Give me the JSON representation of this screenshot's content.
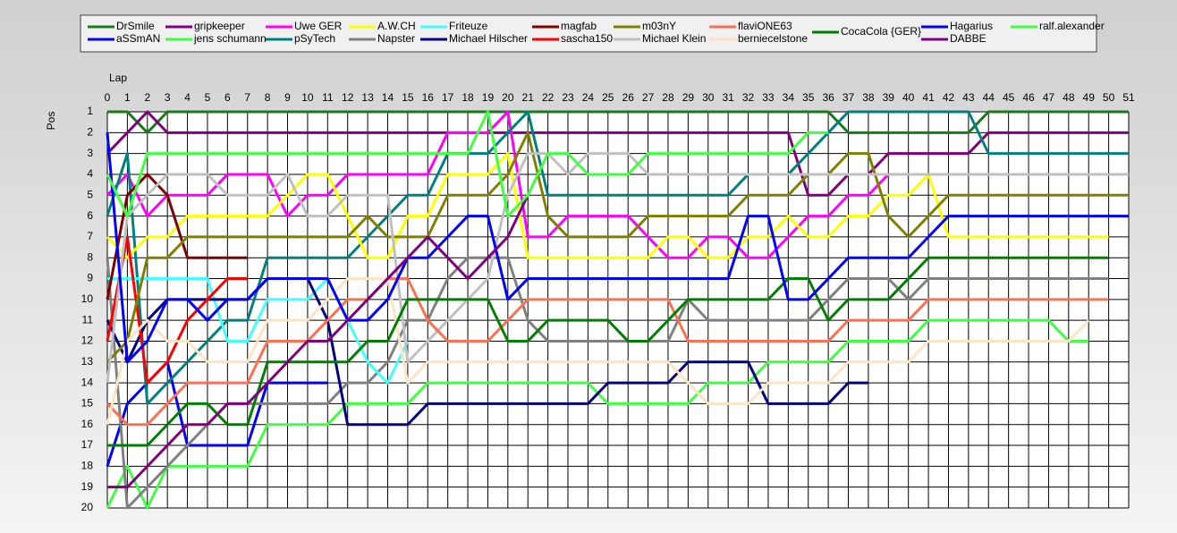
{
  "chart_data": {
    "type": "line",
    "x_label": "Lap",
    "y_label": "Pos",
    "grid": true,
    "x": [
      0,
      1,
      2,
      3,
      4,
      5,
      6,
      7,
      8,
      9,
      10,
      11,
      12,
      13,
      14,
      15,
      16,
      17,
      18,
      19,
      20,
      21,
      22,
      23,
      24,
      25,
      26,
      27,
      28,
      29,
      30,
      31,
      32,
      33,
      34,
      35,
      36,
      37,
      38,
      39,
      40,
      41,
      42,
      43,
      44,
      45,
      46,
      47,
      48,
      49,
      50,
      51
    ],
    "xlim": [
      0,
      51
    ],
    "xticks": [
      0,
      1,
      2,
      3,
      4,
      5,
      6,
      7,
      8,
      9,
      10,
      11,
      12,
      13,
      14,
      15,
      16,
      17,
      18,
      19,
      20,
      21,
      22,
      23,
      24,
      25,
      26,
      27,
      28,
      29,
      30,
      31,
      32,
      33,
      34,
      35,
      36,
      37,
      38,
      39,
      40,
      41,
      42,
      43,
      44,
      45,
      46,
      47,
      48,
      49,
      50,
      51
    ],
    "ylim": [
      20,
      1
    ],
    "yticks": [
      1,
      2,
      3,
      4,
      5,
      6,
      7,
      8,
      9,
      10,
      11,
      12,
      13,
      14,
      15,
      16,
      17,
      18,
      19,
      20
    ],
    "series": [
      {
        "name": "DrSmile",
        "color": "#1a7a1a",
        "values": [
          1,
          1,
          2,
          1,
          1,
          1,
          1,
          1,
          1,
          1,
          1,
          1,
          1,
          1,
          1,
          1,
          1,
          1,
          1,
          1,
          1,
          1,
          1,
          1,
          1,
          1,
          1,
          1,
          1,
          1,
          1,
          1,
          1,
          1,
          1,
          1,
          1,
          2,
          2,
          2,
          2,
          2,
          2,
          2,
          1,
          1,
          1,
          1,
          1,
          1,
          1,
          1
        ]
      },
      {
        "name": "aSSmAN",
        "color": "#0000ff",
        "values": [
          18,
          15,
          14,
          13,
          17,
          17,
          17,
          17,
          14,
          14,
          14,
          14,
          null,
          null,
          null,
          null,
          null,
          null,
          null,
          null,
          null,
          null,
          null,
          null,
          null,
          null,
          null,
          null,
          null,
          null,
          null,
          null,
          null,
          null,
          null,
          null,
          null,
          null,
          null,
          null,
          null,
          null,
          null,
          null,
          null,
          null,
          null,
          null,
          null,
          null,
          null,
          null
        ]
      },
      {
        "name": "gripkeeper",
        "color": "#800080",
        "values": [
          3,
          2,
          1,
          2,
          2,
          2,
          2,
          2,
          2,
          2,
          2,
          2,
          2,
          2,
          2,
          2,
          2,
          2,
          2,
          2,
          2,
          2,
          2,
          2,
          2,
          2,
          2,
          2,
          2,
          2,
          2,
          2,
          2,
          2,
          2,
          5,
          5,
          4,
          4,
          3,
          3,
          3,
          3,
          3,
          2,
          2,
          2,
          2,
          2,
          2,
          2,
          2
        ]
      },
      {
        "name": "jens  schumann",
        "color": "#40ff40",
        "values": [
          20,
          18,
          20,
          18,
          18,
          18,
          18,
          18,
          16,
          16,
          16,
          16,
          15,
          15,
          15,
          15,
          14,
          14,
          14,
          14,
          14,
          14,
          14,
          14,
          14,
          15,
          15,
          15,
          15,
          15,
          14,
          14,
          14,
          13,
          13,
          13,
          13,
          12,
          12,
          12,
          12,
          11,
          11,
          11,
          11,
          11,
          11,
          11,
          12,
          12,
          null,
          null
        ]
      },
      {
        "name": "Uwe GER",
        "color": "#ff00ff",
        "values": [
          5,
          4,
          6,
          5,
          5,
          5,
          4,
          4,
          4,
          6,
          5,
          5,
          4,
          4,
          4,
          4,
          4,
          2,
          2,
          2,
          1,
          7,
          7,
          6,
          6,
          6,
          6,
          7,
          8,
          8,
          7,
          7,
          8,
          8,
          7,
          6,
          6,
          5,
          5,
          4,
          4,
          null,
          null,
          null,
          null,
          null,
          null,
          null,
          null,
          null,
          null,
          null
        ]
      },
      {
        "name": "pSyTech",
        "color": "#008080",
        "values": [
          6,
          3,
          15,
          14,
          13,
          12,
          11,
          11,
          8,
          8,
          8,
          8,
          8,
          7,
          6,
          5,
          5,
          3,
          3,
          3,
          2,
          1,
          5,
          5,
          5,
          5,
          5,
          5,
          5,
          5,
          5,
          5,
          4,
          4,
          4,
          3,
          2,
          1,
          1,
          1,
          1,
          1,
          1,
          1,
          3,
          3,
          3,
          3,
          3,
          3,
          3,
          3
        ]
      },
      {
        "name": "A.W.CH",
        "color": "#ffff00",
        "values": [
          7,
          8,
          7,
          7,
          6,
          6,
          6,
          6,
          6,
          5,
          4,
          4,
          6,
          8,
          8,
          6,
          6,
          4,
          4,
          4,
          3,
          8,
          8,
          8,
          8,
          8,
          8,
          8,
          7,
          7,
          8,
          8,
          7,
          7,
          6,
          7,
          7,
          6,
          6,
          5,
          5,
          4,
          7,
          7,
          7,
          7,
          7,
          7,
          7,
          7,
          7,
          null
        ]
      },
      {
        "name": "Napster",
        "color": "#808080",
        "values": [
          8,
          20,
          19,
          18,
          17,
          16,
          15,
          15,
          15,
          15,
          15,
          15,
          14,
          14,
          13,
          11,
          11,
          9,
          8,
          8,
          8,
          11,
          12,
          12,
          12,
          12,
          12,
          12,
          12,
          10,
          11,
          11,
          11,
          11,
          11,
          11,
          10,
          9,
          9,
          9,
          10,
          9,
          9,
          9,
          9,
          9,
          9,
          9,
          9,
          9,
          9,
          null
        ]
      },
      {
        "name": "Friteuze",
        "color": "#40ffff",
        "values": [
          9,
          9,
          9,
          9,
          9,
          9,
          12,
          12,
          10,
          10,
          10,
          9,
          11,
          13,
          14,
          12,
          null,
          null,
          null,
          null,
          null,
          null,
          null,
          null,
          null,
          null,
          null,
          null,
          null,
          null,
          null,
          null,
          null,
          null,
          null,
          null,
          null,
          null,
          null,
          null,
          null,
          null,
          null,
          null,
          null,
          null,
          null,
          null,
          null,
          null,
          null,
          null
        ]
      },
      {
        "name": "Michael Hilscher",
        "color": "#000080",
        "values": [
          11,
          13,
          11,
          10,
          10,
          10,
          10,
          10,
          9,
          9,
          9,
          11,
          16,
          16,
          16,
          16,
          15,
          15,
          15,
          15,
          15,
          15,
          15,
          15,
          15,
          14,
          14,
          14,
          14,
          13,
          13,
          13,
          13,
          15,
          15,
          15,
          15,
          14,
          14,
          null,
          null,
          null,
          null,
          null,
          null,
          null,
          null,
          null,
          null,
          null,
          null,
          null
        ]
      },
      {
        "name": "magfab",
        "color": "#800000",
        "values": [
          10,
          5,
          4,
          5,
          8,
          8,
          8,
          8,
          null,
          null,
          null,
          null,
          null,
          null,
          null,
          null,
          null,
          null,
          null,
          null,
          null,
          null,
          null,
          null,
          null,
          null,
          null,
          null,
          null,
          null,
          null,
          null,
          null,
          null,
          null,
          null,
          null,
          null,
          null,
          null,
          null,
          null,
          null,
          null,
          null,
          null,
          null,
          null,
          null,
          null,
          null,
          null
        ]
      },
      {
        "name": "sascha150",
        "color": "#ff0000",
        "values": [
          12,
          7,
          14,
          13,
          11,
          10,
          9,
          9,
          null,
          null,
          null,
          null,
          null,
          null,
          null,
          null,
          null,
          null,
          null,
          null,
          null,
          null,
          null,
          null,
          null,
          null,
          null,
          null,
          null,
          null,
          null,
          null,
          null,
          null,
          null,
          null,
          null,
          null,
          null,
          null,
          null,
          null,
          null,
          null,
          null,
          null,
          null,
          null,
          null,
          null,
          null,
          null
        ]
      },
      {
        "name": "m03nY",
        "color": "#808000",
        "values": [
          13,
          12,
          8,
          8,
          7,
          7,
          7,
          7,
          7,
          7,
          7,
          7,
          7,
          6,
          7,
          7,
          7,
          5,
          5,
          5,
          4,
          2,
          6,
          7,
          7,
          7,
          7,
          6,
          6,
          6,
          6,
          6,
          5,
          5,
          5,
          4,
          4,
          3,
          3,
          6,
          7,
          6,
          5,
          5,
          5,
          5,
          5,
          5,
          5,
          5,
          5,
          5
        ]
      },
      {
        "name": "Michael Klein",
        "color": "#c0c0c0",
        "values": [
          14,
          6,
          5,
          4,
          4,
          4,
          5,
          5,
          5,
          4,
          6,
          6,
          5,
          5,
          5,
          13,
          12,
          11,
          10,
          9,
          5,
          3,
          3,
          4,
          3,
          3,
          3,
          4,
          4,
          4,
          4,
          4,
          4,
          4,
          4,
          4,
          4,
          4,
          4,
          4,
          4,
          4,
          4,
          4,
          4,
          4,
          4,
          4,
          4,
          4,
          4,
          4
        ]
      },
      {
        "name": "flaviONE63",
        "color": "#ff7050",
        "values": [
          15,
          16,
          16,
          15,
          14,
          14,
          14,
          14,
          12,
          12,
          12,
          11,
          10,
          10,
          9,
          9,
          11,
          12,
          12,
          12,
          11,
          10,
          10,
          10,
          10,
          10,
          10,
          10,
          10,
          12,
          12,
          12,
          12,
          12,
          12,
          12,
          12,
          11,
          11,
          11,
          11,
          10,
          10,
          10,
          10,
          10,
          10,
          10,
          10,
          10,
          10,
          null
        ]
      },
      {
        "name": "berniecelstone",
        "color": "#ffe4c4",
        "values": [
          16,
          12,
          11,
          12,
          12,
          13,
          13,
          13,
          11,
          11,
          11,
          10,
          9,
          9,
          9,
          14,
          13,
          13,
          13,
          13,
          13,
          13,
          13,
          13,
          13,
          13,
          13,
          13,
          13,
          14,
          15,
          15,
          15,
          14,
          14,
          14,
          14,
          13,
          13,
          13,
          13,
          12,
          12,
          12,
          12,
          12,
          12,
          12,
          12,
          11,
          null,
          null
        ]
      },
      {
        "name": "CocaCola {GER}",
        "color": "#008000",
        "values": [
          17,
          17,
          17,
          16,
          15,
          15,
          16,
          16,
          13,
          13,
          13,
          13,
          13,
          12,
          12,
          10,
          10,
          10,
          10,
          10,
          12,
          12,
          11,
          11,
          11,
          11,
          12,
          12,
          11,
          10,
          10,
          10,
          10,
          10,
          9,
          9,
          11,
          10,
          10,
          10,
          9,
          8,
          8,
          8,
          8,
          8,
          8,
          8,
          8,
          8,
          8,
          null
        ]
      },
      {
        "name": "Hagarius",
        "color": "#0000ff",
        "values": [
          2,
          13,
          12,
          10,
          10,
          11,
          10,
          10,
          9,
          9,
          9,
          9,
          11,
          11,
          10,
          8,
          8,
          7,
          6,
          6,
          10,
          9,
          9,
          9,
          9,
          9,
          9,
          9,
          9,
          9,
          9,
          9,
          6,
          6,
          10,
          10,
          9,
          8,
          8,
          8,
          8,
          7,
          6,
          6,
          6,
          6,
          6,
          6,
          6,
          6,
          6,
          6
        ]
      },
      {
        "name": "DABBE",
        "color": "#800080",
        "values": [
          19,
          19,
          18,
          17,
          16,
          16,
          15,
          15,
          14,
          13,
          12,
          12,
          11,
          10,
          9,
          8,
          7,
          8,
          9,
          8,
          7,
          5,
          null,
          null,
          null,
          null,
          null,
          null,
          null,
          null,
          null,
          null,
          null,
          null,
          null,
          null,
          null,
          null,
          null,
          null,
          null,
          null,
          null,
          null,
          null,
          null,
          null,
          null,
          null,
          null,
          null,
          null
        ]
      },
      {
        "name": "ralf.alexander",
        "color": "#40ff40",
        "values": [
          4,
          6,
          3,
          3,
          3,
          3,
          3,
          3,
          3,
          3,
          3,
          3,
          3,
          3,
          3,
          3,
          3,
          3,
          3,
          1,
          6,
          5,
          3,
          3,
          4,
          4,
          4,
          3,
          3,
          3,
          3,
          3,
          3,
          3,
          3,
          2,
          2,
          null,
          null,
          null,
          null,
          null,
          null,
          null,
          null,
          null,
          null,
          null,
          null,
          null,
          null,
          null
        ]
      }
    ]
  }
}
